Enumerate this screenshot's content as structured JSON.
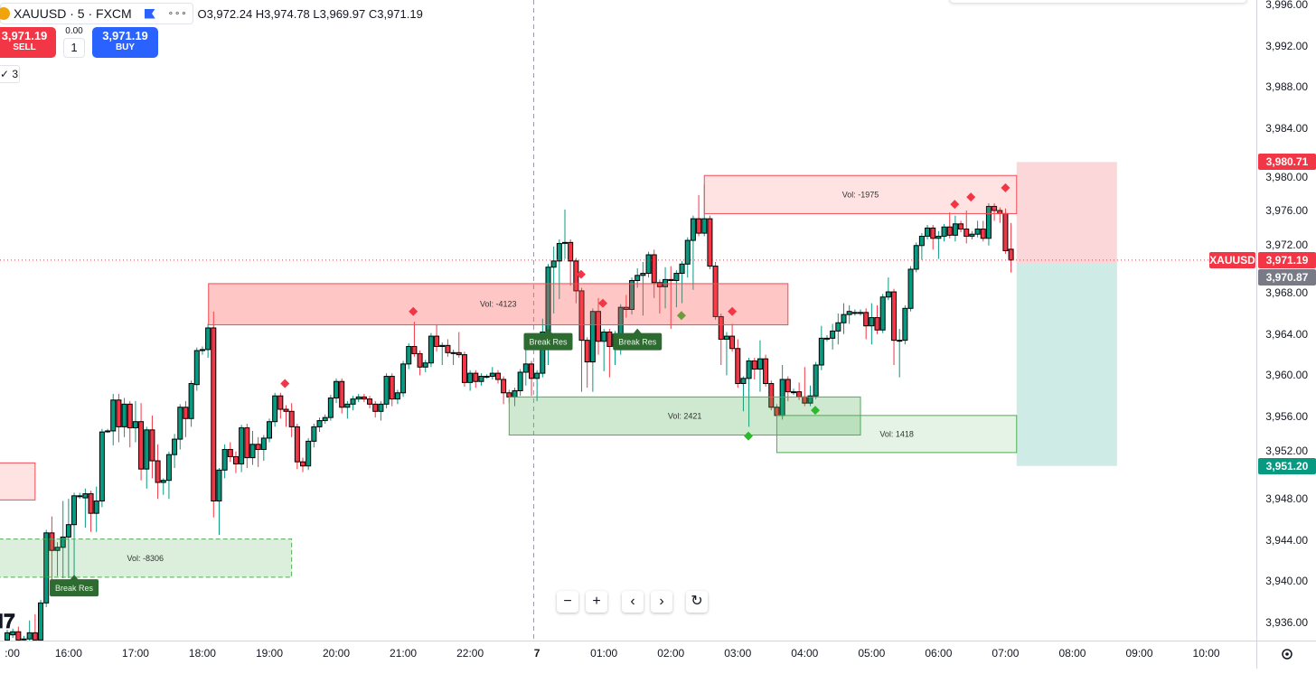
{
  "legend": {
    "symbol": "XAUUSD · 5 · FXCM",
    "more": "∘∘∘",
    "ohlc": "O3,972.24 H3,974.78 L3,969.97 C3,971.19"
  },
  "trade": {
    "sell_price": "3,971.19",
    "sell_label": "SELL",
    "buy_price": "3,971.19",
    "buy_label": "BUY",
    "spread": "0.00",
    "quantity": "1"
  },
  "indicators_toggle": "✓ 3",
  "nav": {
    "zoom_out": "−",
    "zoom_in": "+",
    "scroll_left": "‹",
    "scroll_right": "›",
    "reset": "↻"
  },
  "logo": "17",
  "colors": {
    "up": "#089981",
    "down": "#F23645",
    "buy": "#2962FF",
    "sell": "#F23645",
    "label_green": "#2E6B31"
  },
  "chart_data": {
    "type": "candlestick",
    "symbol": "XAUUSD",
    "timeframe": "5",
    "ylim": [
      3934,
      3997
    ],
    "price_ticks": [
      "3,996.00",
      "3,992.00",
      "3,988.00",
      "3,984.00",
      "3,980.00",
      "3,976.00",
      "3,972.00",
      "3,968.00",
      "3,964.00",
      "3,960.00",
      "3,956.00",
      "3,952.00",
      "3,948.00",
      "3,944.00",
      "3,940.00",
      "3,936.00"
    ],
    "price_tick_values": [
      3996,
      3992,
      3988,
      3984,
      3980,
      3976,
      3972,
      3968,
      3964,
      3960,
      3956,
      3952,
      3948,
      3944,
      3940,
      3936
    ],
    "time_labels": [
      {
        "i": 0.9,
        "t": ":00"
      },
      {
        "i": 11,
        "t": "16:00"
      },
      {
        "i": 23,
        "t": "17:00"
      },
      {
        "i": 35,
        "t": "18:00"
      },
      {
        "i": 47,
        "t": "19:00"
      },
      {
        "i": 59,
        "t": "20:00"
      },
      {
        "i": 71,
        "t": "21:00"
      },
      {
        "i": 83,
        "t": "22:00"
      },
      {
        "i": 95,
        "t": "7"
      },
      {
        "i": 107,
        "t": "01:00"
      },
      {
        "i": 119,
        "t": "02:00"
      },
      {
        "i": 131,
        "t": "03:00"
      },
      {
        "i": 143,
        "t": "04:00"
      },
      {
        "i": 155,
        "t": "05:00"
      },
      {
        "i": 167,
        "t": "06:00"
      },
      {
        "i": 179,
        "t": "07:00"
      },
      {
        "i": 191,
        "t": "08:00"
      },
      {
        "i": 203,
        "t": "09:00"
      },
      {
        "i": 215,
        "t": "10:00"
      }
    ],
    "session_break_index": 94.4,
    "last_price": 3971.19,
    "price_badges": [
      {
        "label": "3,980.71",
        "value": 3980.71,
        "color": "#F23645"
      },
      {
        "label": "3,971.19",
        "value": 3971.19,
        "color": "#F23645",
        "tag": "XAUUSD"
      },
      {
        "label": "3,970.87",
        "value": 3969.5,
        "color": "#787B86"
      },
      {
        "label": "3,951.20",
        "value": 3951.2,
        "color": "#089981"
      }
    ],
    "zones": [
      {
        "label": "Vol: -4123",
        "top": 3968.9,
        "bottom": 3964.9,
        "from": 36.1,
        "to": 140,
        "kind": "supply"
      },
      {
        "label": "Vol: -1975",
        "top": 3979.4,
        "bottom": 3975.7,
        "from": 125,
        "to": 181,
        "kind": "supply-light"
      },
      {
        "label": "Vol: 2421",
        "top": 3957.9,
        "bottom": 3954.2,
        "from": 90,
        "to": 153,
        "kind": "demand"
      },
      {
        "label": "Vol: 1418",
        "top": 3956.1,
        "bottom": 3952.5,
        "from": 138,
        "to": 181,
        "kind": "demand-light"
      },
      {
        "label": "Vol: -8306",
        "top": 3944.1,
        "bottom": 3940.4,
        "from": -1.5,
        "to": 51,
        "kind": "demand-dashed"
      },
      {
        "label": "",
        "top": 3951.5,
        "bottom": 3947.9,
        "from": -1.5,
        "to": 5,
        "kind": "supply-light"
      }
    ],
    "position": {
      "entry": 3970.87,
      "target": 3951.2,
      "stop": 3980.71,
      "from": 181,
      "to": 199
    },
    "break_labels": [
      {
        "text": "Break Res",
        "i": 12,
        "price": 3940.2
      },
      {
        "text": "Break Res",
        "i": 97,
        "price": 3964.1
      },
      {
        "text": "Break Res",
        "i": 113,
        "price": 3964.1
      }
    ],
    "markers": [
      {
        "i": 72.8,
        "price": 3966.2,
        "color": "#F23645"
      },
      {
        "i": 49.8,
        "price": 3959.2,
        "color": "#F23645"
      },
      {
        "i": 102.9,
        "price": 3969.8,
        "color": "#F23645"
      },
      {
        "i": 106.8,
        "price": 3967.0,
        "color": "#F23645"
      },
      {
        "i": 130,
        "price": 3966.2,
        "color": "#F23645"
      },
      {
        "i": 169.9,
        "price": 3976.6,
        "color": "#F23645"
      },
      {
        "i": 172.8,
        "price": 3977.3,
        "color": "#F23645"
      },
      {
        "i": 179,
        "price": 3978.2,
        "color": "#F23645"
      },
      {
        "i": 120.9,
        "price": 3965.8,
        "color": "#6A9E3A"
      },
      {
        "i": 132.9,
        "price": 3954.1,
        "color": "#2DB82D"
      },
      {
        "i": 144.9,
        "price": 3956.6,
        "color": "#2DB82D"
      }
    ],
    "ohlc": [
      [
        3934.3,
        3935.3,
        3934.0,
        3935.0
      ],
      [
        3934.8,
        3935.4,
        3934.5,
        3935.1
      ],
      [
        3935.1,
        3935.6,
        3934.0,
        3934.3
      ],
      [
        3934.4,
        3934.7,
        3934.1,
        3934.4
      ],
      [
        3934.4,
        3936.2,
        3934.1,
        3935.0
      ],
      [
        3935.0,
        3936.8,
        3934.0,
        3934.3
      ],
      [
        3934.3,
        3938.2,
        3934.0,
        3937.9
      ],
      [
        3937.9,
        3945.0,
        3937.5,
        3944.7
      ],
      [
        3944.7,
        3946.3,
        3939.6,
        3943.0
      ],
      [
        3943.0,
        3943.8,
        3940.5,
        3943.3
      ],
      [
        3943.3,
        3947.8,
        3940.3,
        3944.3
      ],
      [
        3944.3,
        3948.0,
        3940.3,
        3945.5
      ],
      [
        3945.5,
        3948.6,
        3940.3,
        3948.3
      ],
      [
        3948.3,
        3948.6,
        3948.0,
        3948.3
      ],
      [
        3948.1,
        3949.0,
        3945.2,
        3948.5
      ],
      [
        3948.5,
        3948.8,
        3944.8,
        3946.6
      ],
      [
        3946.6,
        3949.2,
        3944.8,
        3947.8
      ],
      [
        3947.8,
        3954.8,
        3947.2,
        3954.5
      ],
      [
        3954.6,
        3954.8,
        3954.4,
        3954.6
      ],
      [
        3954.6,
        3958.2,
        3953.2,
        3957.6
      ],
      [
        3957.6,
        3958.2,
        3953.5,
        3955.0
      ],
      [
        3955.0,
        3957.8,
        3954.0,
        3957.2
      ],
      [
        3957.2,
        3957.5,
        3953.0,
        3954.9
      ],
      [
        3954.9,
        3957.5,
        3953.5,
        3955.5
      ],
      [
        3955.5,
        3957.3,
        3949.8,
        3950.9
      ],
      [
        3950.9,
        3955.0,
        3949.0,
        3954.7
      ],
      [
        3954.7,
        3956.1,
        3950.0,
        3951.7
      ],
      [
        3951.7,
        3953.3,
        3948.0,
        3949.6
      ],
      [
        3949.6,
        3950.0,
        3948.4,
        3949.8
      ],
      [
        3949.8,
        3952.6,
        3948.0,
        3952.3
      ],
      [
        3952.3,
        3954.3,
        3951.0,
        3953.8
      ],
      [
        3953.8,
        3957.2,
        3952.8,
        3956.9
      ],
      [
        3956.9,
        3957.5,
        3954.0,
        3955.8
      ],
      [
        3955.8,
        3959.5,
        3955.0,
        3959.2
      ],
      [
        3959.1,
        3962.7,
        3958.5,
        3962.4
      ],
      [
        3962.4,
        3962.8,
        3962.0,
        3962.5
      ],
      [
        3962.5,
        3965.0,
        3961.7,
        3964.6
      ],
      [
        3964.6,
        3966.2,
        3946.2,
        3947.8
      ],
      [
        3947.8,
        3951.0,
        3944.5,
        3950.8
      ],
      [
        3950.8,
        3953.3,
        3950.0,
        3952.8
      ],
      [
        3952.8,
        3953.5,
        3951.6,
        3952.1
      ],
      [
        3952.1,
        3952.6,
        3950.5,
        3951.4
      ],
      [
        3951.4,
        3955.2,
        3950.6,
        3954.9
      ],
      [
        3954.9,
        3955.3,
        3951.0,
        3952.0
      ],
      [
        3952.0,
        3954.6,
        3951.3,
        3953.3
      ],
      [
        3953.3,
        3954.0,
        3951.1,
        3952.8
      ],
      [
        3952.8,
        3954.2,
        3951.7,
        3953.9
      ],
      [
        3953.9,
        3955.8,
        3953.5,
        3955.5
      ],
      [
        3955.5,
        3958.3,
        3955.0,
        3958.0
      ],
      [
        3958.0,
        3958.3,
        3955.8,
        3956.7
      ],
      [
        3956.7,
        3957.1,
        3955.0,
        3956.5
      ],
      [
        3956.5,
        3957.3,
        3954.0,
        3955.0
      ],
      [
        3955.0,
        3955.3,
        3950.9,
        3951.6
      ],
      [
        3951.6,
        3952.0,
        3950.6,
        3951.2
      ],
      [
        3951.2,
        3953.9,
        3950.8,
        3953.6
      ],
      [
        3953.6,
        3955.3,
        3953.0,
        3955.0
      ],
      [
        3955.0,
        3955.9,
        3954.5,
        3955.6
      ],
      [
        3955.6,
        3956.2,
        3955.3,
        3955.9
      ],
      [
        3955.9,
        3958.1,
        3955.6,
        3957.8
      ],
      [
        3957.8,
        3959.7,
        3957.3,
        3959.4
      ],
      [
        3959.4,
        3959.7,
        3956.3,
        3956.9
      ],
      [
        3956.9,
        3957.5,
        3955.8,
        3957.2
      ],
      [
        3957.2,
        3958.0,
        3956.6,
        3957.7
      ],
      [
        3957.7,
        3958.2,
        3957.4,
        3957.9
      ],
      [
        3957.9,
        3958.2,
        3957.4,
        3957.7
      ],
      [
        3957.7,
        3958.0,
        3956.8,
        3957.2
      ],
      [
        3957.2,
        3957.5,
        3955.9,
        3956.5
      ],
      [
        3956.5,
        3957.5,
        3955.6,
        3957.2
      ],
      [
        3957.2,
        3960.2,
        3956.8,
        3959.9
      ],
      [
        3959.9,
        3960.2,
        3957.0,
        3957.7
      ],
      [
        3957.7,
        3958.6,
        3957.2,
        3958.3
      ],
      [
        3958.3,
        3961.4,
        3957.9,
        3961.1
      ],
      [
        3961.1,
        3963.1,
        3960.6,
        3962.8
      ],
      [
        3962.8,
        3965.2,
        3961.8,
        3962.1
      ],
      [
        3962.1,
        3962.4,
        3960.0,
        3960.8
      ],
      [
        3960.8,
        3961.5,
        3960.3,
        3961.2
      ],
      [
        3961.2,
        3964.1,
        3960.8,
        3963.8
      ],
      [
        3963.8,
        3964.9,
        3962.3,
        3962.8
      ],
      [
        3962.8,
        3963.2,
        3961.0,
        3962.9
      ],
      [
        3962.9,
        3963.5,
        3961.8,
        3962.2
      ],
      [
        3962.2,
        3962.5,
        3961.0,
        3962.2
      ],
      [
        3962.2,
        3964.2,
        3961.7,
        3962.0
      ],
      [
        3962.0,
        3962.3,
        3958.9,
        3959.3
      ],
      [
        3959.3,
        3960.5,
        3958.5,
        3960.2
      ],
      [
        3960.2,
        3960.5,
        3958.8,
        3959.4
      ],
      [
        3959.4,
        3960.2,
        3959.0,
        3959.9
      ],
      [
        3959.9,
        3960.1,
        3959.7,
        3959.9
      ],
      [
        3959.9,
        3960.8,
        3959.6,
        3960.2
      ],
      [
        3960.2,
        3960.5,
        3959.2,
        3959.6
      ],
      [
        3959.6,
        3959.9,
        3957.2,
        3958.3
      ],
      [
        3958.3,
        3958.6,
        3957.3,
        3957.9
      ],
      [
        3957.9,
        3958.8,
        3957.0,
        3958.5
      ],
      [
        3958.5,
        3960.6,
        3958.0,
        3960.3
      ],
      [
        3960.3,
        3963.5,
        3959.0,
        3961.1
      ],
      [
        3961.1,
        3961.4,
        3958.0,
        3959.7
      ],
      [
        3959.7,
        3960.5,
        3957.5,
        3960.2
      ],
      [
        3960.2,
        3965.5,
        3959.8,
        3964.2
      ],
      [
        3964.2,
        3970.8,
        3961.0,
        3970.5
      ],
      [
        3970.5,
        3972.5,
        3966.0,
        3971.1
      ],
      [
        3971.1,
        3973.2,
        3967.4,
        3972.8
      ],
      [
        3972.9,
        3976.1,
        3971.3,
        3972.9
      ],
      [
        3972.9,
        3973.2,
        3968.7,
        3971.1
      ],
      [
        3971.1,
        3971.4,
        3967.0,
        3968.2
      ],
      [
        3968.2,
        3968.5,
        3958.4,
        3963.4
      ],
      [
        3963.4,
        3963.7,
        3958.8,
        3961.3
      ],
      [
        3961.3,
        3966.5,
        3958.4,
        3966.2
      ],
      [
        3966.2,
        3967.5,
        3962.0,
        3963.3
      ],
      [
        3963.3,
        3964.5,
        3960.4,
        3964.2
      ],
      [
        3964.2,
        3964.5,
        3959.8,
        3962.8
      ],
      [
        3962.8,
        3964.3,
        3961.0,
        3964.0
      ],
      [
        3964.0,
        3966.9,
        3962.0,
        3966.6
      ],
      [
        3966.6,
        3967.8,
        3965.6,
        3966.4
      ],
      [
        3966.4,
        3969.5,
        3965.9,
        3969.2
      ],
      [
        3969.2,
        3970.4,
        3968.5,
        3969.7
      ],
      [
        3969.7,
        3971.0,
        3965.8,
        3969.9
      ],
      [
        3969.9,
        3972.0,
        3969.5,
        3971.7
      ],
      [
        3971.7,
        3972.2,
        3967.5,
        3969.0
      ],
      [
        3969.0,
        3969.3,
        3966.0,
        3968.6
      ],
      [
        3968.6,
        3970.5,
        3966.5,
        3969.3
      ],
      [
        3969.3,
        3970.6,
        3964.5,
        3969.2
      ],
      [
        3969.2,
        3970.2,
        3966.6,
        3969.9
      ],
      [
        3969.9,
        3971.1,
        3967.0,
        3970.8
      ],
      [
        3970.8,
        3973.4,
        3969.5,
        3973.1
      ],
      [
        3973.1,
        3975.5,
        3968.3,
        3975.2
      ],
      [
        3975.2,
        3977.5,
        3973.5,
        3973.8
      ],
      [
        3973.8,
        3978.5,
        3973.5,
        3975.2
      ],
      [
        3975.2,
        3975.5,
        3970.3,
        3970.6
      ],
      [
        3970.6,
        3971.0,
        3965.4,
        3965.7
      ],
      [
        3965.7,
        3966.0,
        3961.0,
        3963.5
      ],
      [
        3963.5,
        3964.2,
        3960.0,
        3963.8
      ],
      [
        3963.8,
        3965.0,
        3962.3,
        3962.6
      ],
      [
        3962.6,
        3963.5,
        3958.8,
        3959.2
      ],
      [
        3959.2,
        3959.9,
        3956.5,
        3959.7
      ],
      [
        3959.7,
        3961.7,
        3955.0,
        3961.4
      ],
      [
        3961.4,
        3961.7,
        3959.6,
        3960.6
      ],
      [
        3960.6,
        3963.4,
        3958.4,
        3961.6
      ],
      [
        3961.6,
        3962.0,
        3958.9,
        3959.2
      ],
      [
        3959.2,
        3959.5,
        3956.6,
        3956.9
      ],
      [
        3956.9,
        3957.2,
        3955.6,
        3956.1
      ],
      [
        3956.1,
        3961.0,
        3955.7,
        3959.6
      ],
      [
        3959.6,
        3959.9,
        3957.5,
        3958.4
      ],
      [
        3958.4,
        3958.7,
        3958.1,
        3958.4
      ],
      [
        3958.4,
        3959.3,
        3957.6,
        3957.9
      ],
      [
        3957.9,
        3960.8,
        3957.0,
        3957.3
      ],
      [
        3957.3,
        3959.0,
        3957.0,
        3958.0
      ],
      [
        3958.0,
        3961.3,
        3957.7,
        3961.0
      ],
      [
        3961.0,
        3964.8,
        3960.5,
        3963.6
      ],
      [
        3963.6,
        3963.9,
        3963.3,
        3963.6
      ],
      [
        3963.6,
        3965.0,
        3962.5,
        3964.3
      ],
      [
        3964.3,
        3966.0,
        3963.0,
        3965.1
      ],
      [
        3965.1,
        3967.0,
        3964.0,
        3965.9
      ],
      [
        3965.9,
        3966.8,
        3965.0,
        3966.2
      ],
      [
        3966.1,
        3966.4,
        3965.8,
        3966.1
      ],
      [
        3966.1,
        3966.4,
        3965.8,
        3966.1
      ],
      [
        3966.1,
        3966.5,
        3963.5,
        3964.8
      ],
      [
        3964.8,
        3967.0,
        3963.0,
        3965.6
      ],
      [
        3965.6,
        3966.8,
        3964.0,
        3964.4
      ],
      [
        3964.4,
        3967.9,
        3964.1,
        3967.6
      ],
      [
        3967.6,
        3969.5,
        3967.3,
        3968.1
      ],
      [
        3968.1,
        3968.4,
        3961.0,
        3963.4
      ],
      [
        3963.4,
        3964.5,
        3959.8,
        3963.4
      ],
      [
        3963.4,
        3966.8,
        3963.0,
        3966.5
      ],
      [
        3966.5,
        3970.6,
        3966.2,
        3970.3
      ],
      [
        3970.3,
        3972.9,
        3970.0,
        3972.6
      ],
      [
        3972.6,
        3973.8,
        3971.2,
        3973.5
      ],
      [
        3973.5,
        3974.6,
        3973.2,
        3974.3
      ],
      [
        3974.3,
        3974.6,
        3972.2,
        3973.3
      ],
      [
        3973.3,
        3974.0,
        3971.3,
        3973.5
      ],
      [
        3973.5,
        3974.7,
        3973.0,
        3974.4
      ],
      [
        3974.4,
        3975.8,
        3973.3,
        3973.6
      ],
      [
        3973.6,
        3975.5,
        3973.0,
        3974.7
      ],
      [
        3974.7,
        3975.0,
        3973.9,
        3974.2
      ],
      [
        3974.2,
        3976.0,
        3972.8,
        3973.5
      ],
      [
        3973.5,
        3974.0,
        3973.2,
        3973.7
      ],
      [
        3973.7,
        3975.0,
        3973.4,
        3974.2
      ],
      [
        3974.2,
        3975.0,
        3973.0,
        3973.3
      ],
      [
        3973.3,
        3976.7,
        3972.6,
        3976.4
      ],
      [
        3976.4,
        3976.7,
        3975.0,
        3976.0
      ],
      [
        3976.0,
        3976.3,
        3974.8,
        3975.7
      ],
      [
        3975.7,
        3976.2,
        3971.8,
        3972.1
      ],
      [
        3972.24,
        3974.78,
        3969.97,
        3971.19
      ]
    ]
  }
}
